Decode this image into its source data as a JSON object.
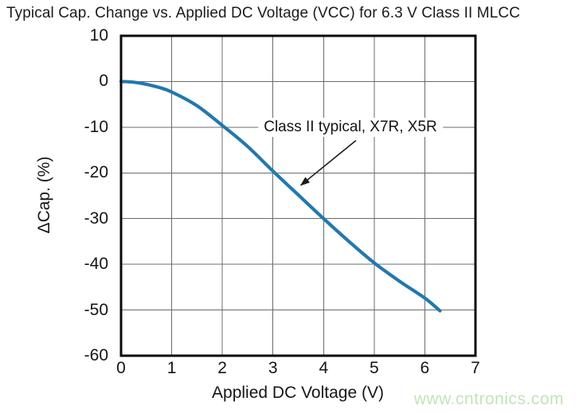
{
  "title": "Typical Cap. Change vs. Applied DC Voltage (VCC) for 6.3 V Class II MLCC",
  "watermark": {
    "text": "www.cntronics.com"
  },
  "colors": {
    "curve": "#2278ae",
    "grid": "#6b6b6b",
    "frame": "#0a0a0a",
    "arrow": "#1a1a1a",
    "text": "#161616",
    "watermark": "#c2e4b8",
    "background": "#ffffff"
  },
  "chart_data": {
    "type": "line",
    "title": "Typical Cap. Change vs. Applied DC Voltage (VCC) for 6.3 V Class II MLCC",
    "xlabel": "Applied DC Voltage (V)",
    "ylabel": "ΔCap. (%)",
    "xlim": [
      0,
      7
    ],
    "ylim": [
      -60,
      10
    ],
    "xticks": [
      0,
      1,
      2,
      3,
      4,
      5,
      6,
      7
    ],
    "yticks": [
      10,
      0,
      -10,
      -20,
      -30,
      -40,
      -50,
      -60
    ],
    "grid": true,
    "legend_position": "none",
    "series": [
      {
        "name": "Class II typical, X7R, X5R",
        "x": [
          0,
          0.25,
          0.5,
          0.75,
          1,
          1.5,
          2,
          2.5,
          3,
          3.5,
          4,
          4.5,
          5,
          5.5,
          6,
          6.3
        ],
        "y": [
          0,
          -0.15,
          -0.6,
          -1.3,
          -2.3,
          -5.3,
          -9.6,
          -14.2,
          -19.6,
          -24.8,
          -30.0,
          -35.0,
          -39.7,
          -43.7,
          -47.4,
          -50.2
        ]
      }
    ],
    "annotation": {
      "text": "Class II typical, X7R, X5R",
      "text_x": 4.53,
      "text_y": -10.0,
      "arrow_from": [
        4.64,
        -12.9
      ],
      "arrow_to": [
        3.55,
        -22.7
      ]
    }
  }
}
